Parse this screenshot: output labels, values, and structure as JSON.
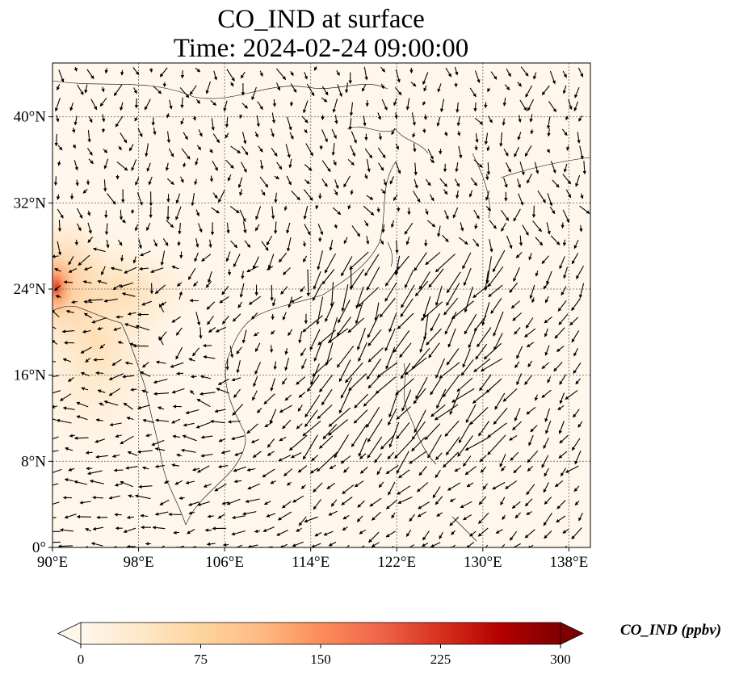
{
  "title": {
    "line1": "CO_IND at surface",
    "line2": "Time: 2024-02-24 09:00:00"
  },
  "map": {
    "projection": "PlateCarree",
    "extent_lon": [
      90,
      140
    ],
    "extent_lat": [
      0,
      45
    ],
    "lon_ticks": [
      {
        "value": 90,
        "label": "90°E"
      },
      {
        "value": 98,
        "label": "98°E"
      },
      {
        "value": 106,
        "label": "106°E"
      },
      {
        "value": 114,
        "label": "114°E"
      },
      {
        "value": 122,
        "label": "122°E"
      },
      {
        "value": 130,
        "label": "130°E"
      },
      {
        "value": 138,
        "label": "138°E"
      }
    ],
    "lat_ticks": [
      {
        "value": 0,
        "label": "0°"
      },
      {
        "value": 8,
        "label": "8°N"
      },
      {
        "value": 16,
        "label": "16°N"
      },
      {
        "value": 24,
        "label": "24°N"
      },
      {
        "value": 32,
        "label": "32°N"
      },
      {
        "value": 40,
        "label": "40°N"
      }
    ],
    "gridlines": true,
    "background_color": "#fff7ec",
    "wind_vectors": true
  },
  "colorbar": {
    "label": "CO_IND (ppbv)",
    "ticks": [
      "0",
      "75",
      "150",
      "225",
      "300"
    ],
    "range": [
      0,
      300
    ],
    "extend": "both",
    "colormap": "OrRd",
    "colors": [
      "#fff7ec",
      "#fee8c8",
      "#fdd49e",
      "#fdbb84",
      "#fc8d59",
      "#ef6548",
      "#d7301f",
      "#b30000",
      "#7f0000"
    ]
  }
}
